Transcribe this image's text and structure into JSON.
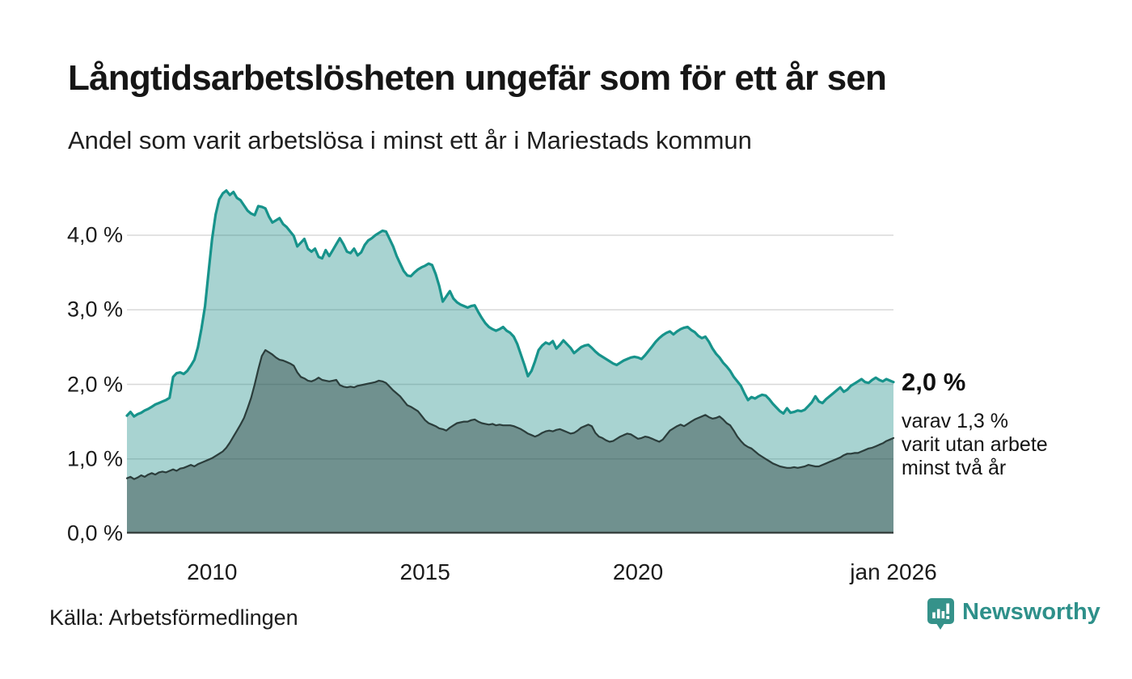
{
  "header": {
    "title": "Långtidsarbetslösheten ungefär som för ett år sen",
    "subtitle": "Andel som varit arbetslösa i minst ett år i Mariestads kommun"
  },
  "annotation": {
    "value_label": "2,0 %",
    "detail_line1": "varav 1,3 %",
    "detail_line2": "varit utan arbete",
    "detail_line3": "minst två år"
  },
  "footer": {
    "source": "Källa: Arbetsförmedlingen",
    "logo_text": "Newsworthy"
  },
  "colors": {
    "line_total": "#17938B",
    "fill_total": "rgba(26,140,133,0.38)",
    "line_two_years": "#2B3D3B",
    "fill_two_years": "rgba(35,55,53,0.42)",
    "gridline": "#D8D8D8",
    "baseline": "#3A4442",
    "logo_teal": "#35928A"
  },
  "chart_data": {
    "type": "area",
    "title": "Långtidsarbetslösheten ungefär som för ett år sen",
    "subtitle": "Andel som varit arbetslösa i minst ett år i Mariestads kommun",
    "x_unit": "month",
    "x_start": "2008-01",
    "x_end": "2026-01",
    "ylim": [
      0,
      4.72
    ],
    "grid": "horizontal",
    "y_ticks": [
      {
        "value": 4,
        "label": "4,0 %"
      },
      {
        "value": 3,
        "label": "3,0 %"
      },
      {
        "value": 2,
        "label": "2,0 %"
      },
      {
        "value": 1,
        "label": "1,0 %"
      },
      {
        "value": 0,
        "label": "0,0 %"
      }
    ],
    "x_ticks": [
      {
        "label": "2010",
        "month_index": 24
      },
      {
        "label": "2015",
        "month_index": 84
      },
      {
        "label": "2020",
        "month_index": 144
      },
      {
        "label": "jan 2026",
        "month_index": 216
      }
    ],
    "end_labels": {
      "total": "2,0 %",
      "two_years": "1,3 %"
    },
    "series": [
      {
        "name": "Andel arbetslösa minst ett år",
        "color": "#17938B",
        "fill": "rgba(26,140,133,0.38)",
        "stroke_width": 3.2,
        "values": [
          1.58,
          1.63,
          1.57,
          1.6,
          1.62,
          1.65,
          1.67,
          1.7,
          1.73,
          1.75,
          1.77,
          1.79,
          1.82,
          2.1,
          2.15,
          2.16,
          2.14,
          2.18,
          2.25,
          2.33,
          2.5,
          2.75,
          3.05,
          3.5,
          3.95,
          4.28,
          4.48,
          4.56,
          4.6,
          4.54,
          4.58,
          4.5,
          4.47,
          4.4,
          4.33,
          4.29,
          4.27,
          4.39,
          4.38,
          4.36,
          4.25,
          4.17,
          4.2,
          4.23,
          4.15,
          4.11,
          4.05,
          3.99,
          3.85,
          3.9,
          3.95,
          3.82,
          3.78,
          3.82,
          3.71,
          3.69,
          3.8,
          3.72,
          3.8,
          3.88,
          3.96,
          3.88,
          3.78,
          3.76,
          3.82,
          3.73,
          3.77,
          3.87,
          3.93,
          3.96,
          4.0,
          4.03,
          4.06,
          4.05,
          3.95,
          3.85,
          3.72,
          3.62,
          3.52,
          3.46,
          3.45,
          3.5,
          3.54,
          3.57,
          3.59,
          3.62,
          3.6,
          3.48,
          3.32,
          3.11,
          3.18,
          3.25,
          3.15,
          3.1,
          3.07,
          3.05,
          3.03,
          3.05,
          3.06,
          2.97,
          2.89,
          2.82,
          2.77,
          2.74,
          2.72,
          2.74,
          2.77,
          2.72,
          2.69,
          2.64,
          2.54,
          2.4,
          2.26,
          2.11,
          2.18,
          2.31,
          2.46,
          2.52,
          2.56,
          2.54,
          2.58,
          2.48,
          2.53,
          2.59,
          2.54,
          2.49,
          2.42,
          2.46,
          2.5,
          2.52,
          2.53,
          2.49,
          2.44,
          2.4,
          2.37,
          2.34,
          2.31,
          2.28,
          2.26,
          2.29,
          2.32,
          2.34,
          2.36,
          2.37,
          2.36,
          2.34,
          2.39,
          2.45,
          2.51,
          2.57,
          2.62,
          2.66,
          2.69,
          2.71,
          2.67,
          2.71,
          2.74,
          2.76,
          2.77,
          2.73,
          2.7,
          2.65,
          2.62,
          2.64,
          2.57,
          2.48,
          2.41,
          2.36,
          2.29,
          2.24,
          2.18,
          2.1,
          2.04,
          1.98,
          1.88,
          1.79,
          1.83,
          1.81,
          1.84,
          1.86,
          1.85,
          1.8,
          1.74,
          1.69,
          1.64,
          1.61,
          1.68,
          1.62,
          1.63,
          1.65,
          1.64,
          1.66,
          1.71,
          1.76,
          1.84,
          1.77,
          1.75,
          1.8,
          1.84,
          1.88,
          1.92,
          1.96,
          1.9,
          1.93,
          1.98,
          2.01,
          2.04,
          2.07,
          2.03,
          2.02,
          2.06,
          2.09,
          2.06,
          2.04,
          2.07,
          2.05,
          2.03
        ]
      },
      {
        "name": "Andel arbetslösa minst två år",
        "color": "#2B3D3B",
        "fill": "rgba(35,55,53,0.42)",
        "stroke_width": 2.2,
        "values": [
          0.74,
          0.76,
          0.73,
          0.75,
          0.78,
          0.76,
          0.79,
          0.81,
          0.79,
          0.82,
          0.83,
          0.82,
          0.84,
          0.86,
          0.84,
          0.87,
          0.88,
          0.9,
          0.92,
          0.9,
          0.93,
          0.95,
          0.97,
          0.99,
          1.01,
          1.04,
          1.07,
          1.1,
          1.15,
          1.22,
          1.3,
          1.38,
          1.46,
          1.55,
          1.68,
          1.82,
          2.0,
          2.2,
          2.38,
          2.46,
          2.43,
          2.4,
          2.36,
          2.33,
          2.32,
          2.3,
          2.28,
          2.25,
          2.16,
          2.1,
          2.08,
          2.05,
          2.04,
          2.06,
          2.09,
          2.06,
          2.05,
          2.04,
          2.05,
          2.06,
          1.99,
          1.97,
          1.96,
          1.97,
          1.96,
          1.98,
          1.99,
          2.0,
          2.01,
          2.02,
          2.03,
          2.05,
          2.04,
          2.02,
          1.97,
          1.92,
          1.88,
          1.84,
          1.78,
          1.72,
          1.7,
          1.67,
          1.64,
          1.58,
          1.52,
          1.48,
          1.46,
          1.44,
          1.41,
          1.4,
          1.38,
          1.42,
          1.45,
          1.48,
          1.49,
          1.5,
          1.5,
          1.52,
          1.53,
          1.5,
          1.48,
          1.47,
          1.46,
          1.47,
          1.45,
          1.46,
          1.45,
          1.45,
          1.45,
          1.44,
          1.42,
          1.4,
          1.37,
          1.34,
          1.32,
          1.3,
          1.32,
          1.35,
          1.37,
          1.38,
          1.37,
          1.39,
          1.4,
          1.38,
          1.36,
          1.34,
          1.35,
          1.38,
          1.42,
          1.44,
          1.46,
          1.44,
          1.35,
          1.3,
          1.28,
          1.25,
          1.23,
          1.24,
          1.27,
          1.3,
          1.32,
          1.34,
          1.33,
          1.3,
          1.27,
          1.28,
          1.3,
          1.29,
          1.27,
          1.25,
          1.23,
          1.26,
          1.32,
          1.38,
          1.41,
          1.44,
          1.46,
          1.44,
          1.47,
          1.5,
          1.53,
          1.55,
          1.57,
          1.59,
          1.56,
          1.54,
          1.55,
          1.57,
          1.53,
          1.48,
          1.45,
          1.38,
          1.3,
          1.24,
          1.19,
          1.16,
          1.14,
          1.1,
          1.06,
          1.03,
          1.0,
          0.97,
          0.94,
          0.92,
          0.9,
          0.89,
          0.88,
          0.88,
          0.89,
          0.88,
          0.89,
          0.9,
          0.92,
          0.91,
          0.9,
          0.9,
          0.92,
          0.94,
          0.96,
          0.98,
          1.0,
          1.02,
          1.05,
          1.07,
          1.07,
          1.08,
          1.08,
          1.1,
          1.12,
          1.14,
          1.15,
          1.17,
          1.19,
          1.21,
          1.24,
          1.26,
          1.28
        ]
      }
    ]
  }
}
